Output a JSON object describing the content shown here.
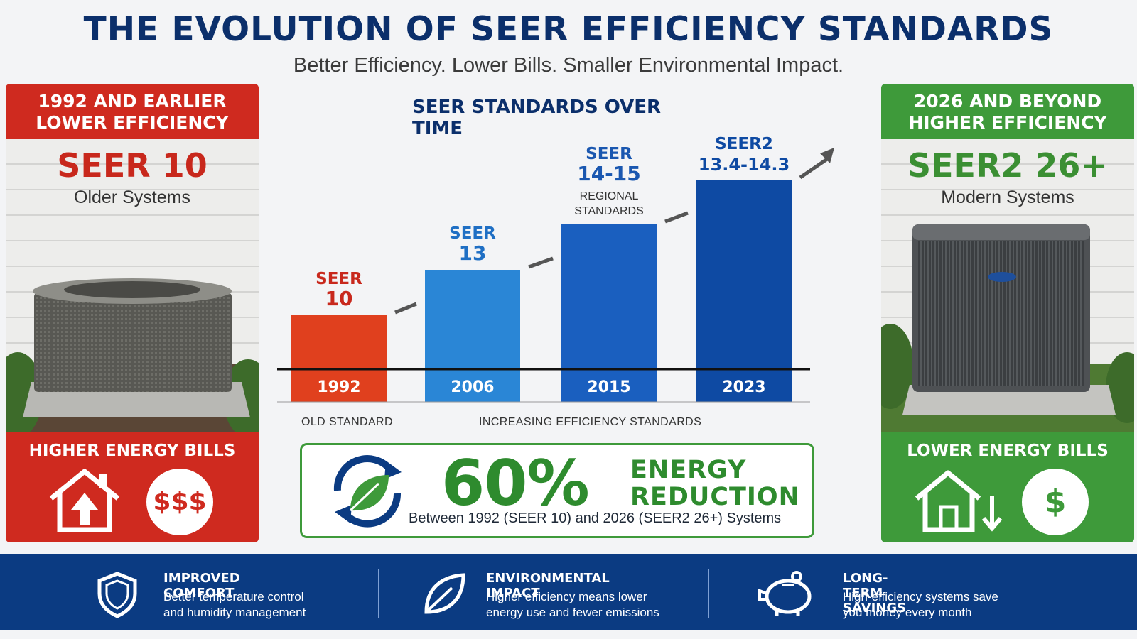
{
  "header": {
    "title": "THE EVOLUTION OF SEER EFFICIENCY STANDARDS",
    "subtitle": "Better Efficiency. Lower Bills. Smaller Environmental Impact."
  },
  "left_panel": {
    "heading_line1": "1992 AND EARLIER",
    "heading_line2": "LOWER EFFICIENCY",
    "rating": "SEER 10",
    "system_label": "Older Systems",
    "footer_title": "HIGHER ENERGY BILLS",
    "cost_symbol": "$$$",
    "accent": "#cf2a1f",
    "icon": "house-up-arrow-icon"
  },
  "right_panel": {
    "heading_line1": "2026 AND BEYOND",
    "heading_line2": "HIGHER EFFICIENCY",
    "rating": "SEER2 26+",
    "system_label": "Modern Systems",
    "footer_title": "LOWER ENERGY BILLS",
    "cost_symbol": "$",
    "accent": "#3e9a3a",
    "icon": "house-down-arrow-icon"
  },
  "chart_data": {
    "type": "bar",
    "title": "SEER STANDARDS OVER TIME",
    "categories": [
      "1992",
      "2006",
      "2015",
      "2023"
    ],
    "values": [
      10,
      13,
      14.5,
      14.3
    ],
    "bar_labels": [
      [
        "SEER",
        "10"
      ],
      [
        "SEER",
        "13"
      ],
      [
        "SEER",
        "14-15"
      ],
      [
        "SEER2",
        "13.4-14.3"
      ]
    ],
    "bar_notes": [
      "",
      "",
      "REGIONAL STANDARDS",
      ""
    ],
    "colors": [
      "#e0401e",
      "#2a86d6",
      "#1a5fbf",
      "#0e4aa3"
    ],
    "label_colors": [
      "#c8281c",
      "#1f6fc4",
      "#1a57b0",
      "#0e4aa3"
    ],
    "xlabel": "",
    "ylabel": "",
    "bottom_notes": [
      "OLD STANDARD",
      "INCREASING EFFICIENCY STANDARDS"
    ]
  },
  "energy_box": {
    "percent": "60%",
    "label_line1": "ENERGY",
    "label_line2": "REDUCTION",
    "caption": "Between 1992 (SEER 10) and 2026 (SEER2 26+) Systems",
    "icon": "leaf-cycle-icon"
  },
  "features": [
    {
      "title": "IMPROVED COMFORT",
      "line1": "Better temperature control",
      "line2": "and humidity management",
      "icon": "shield-icon"
    },
    {
      "title": "ENVIRONMENTAL IMPACT",
      "line1": "Higher efficiency means lower",
      "line2": "energy use and fewer emissions",
      "icon": "leaf-icon"
    },
    {
      "title": "LONG-TERM SAVINGS",
      "line1": "High-efficiency systems save",
      "line2": "you money every month",
      "icon": "piggy-bank-icon"
    }
  ]
}
